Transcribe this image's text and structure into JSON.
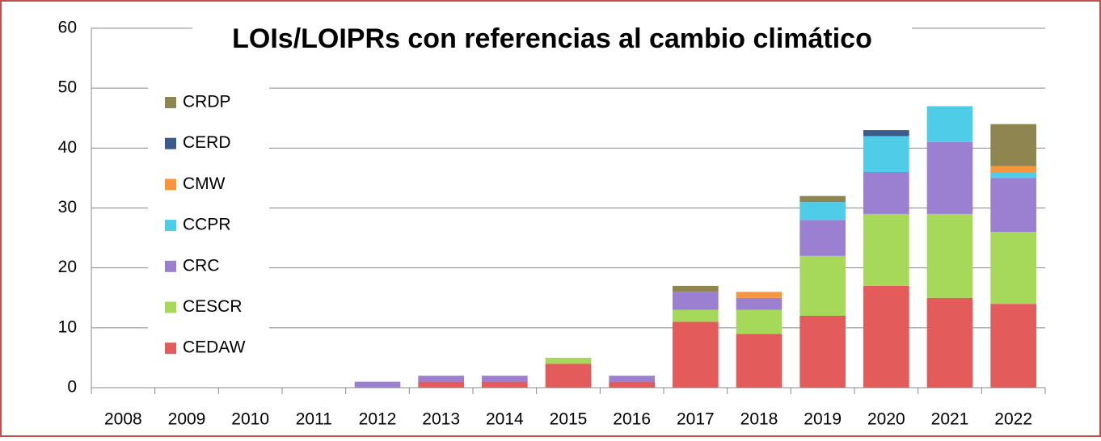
{
  "chart_data": {
    "type": "stacked_bar",
    "title": "LOIs/LOIPRs con referencias al cambio climático",
    "categories": [
      "2008",
      "2009",
      "2010",
      "2011",
      "2012",
      "2013",
      "2014",
      "2015",
      "2016",
      "2017",
      "2018",
      "2019",
      "2020",
      "2021",
      "2022"
    ],
    "series": [
      {
        "name": "CEDAW",
        "color": "#e35b5b",
        "values": [
          0,
          0,
          0,
          0,
          0,
          1,
          1,
          4,
          1,
          11,
          9,
          12,
          17,
          15,
          14
        ]
      },
      {
        "name": "CESCR",
        "color": "#a6d95a",
        "values": [
          0,
          0,
          0,
          0,
          0,
          0,
          0,
          1,
          0,
          2,
          4,
          10,
          12,
          14,
          12
        ]
      },
      {
        "name": "CRC",
        "color": "#9b7fd0",
        "values": [
          0,
          0,
          0,
          0,
          1,
          1,
          1,
          0,
          1,
          3,
          2,
          6,
          7,
          12,
          9
        ]
      },
      {
        "name": "CCPR",
        "color": "#4fcde8",
        "values": [
          0,
          0,
          0,
          0,
          0,
          0,
          0,
          0,
          0,
          0,
          0,
          3,
          6,
          6,
          1
        ]
      },
      {
        "name": "CMW",
        "color": "#f7963c",
        "values": [
          0,
          0,
          0,
          0,
          0,
          0,
          0,
          0,
          0,
          0,
          1,
          0,
          0,
          0,
          1
        ]
      },
      {
        "name": "CERD",
        "color": "#3d5a8c",
        "values": [
          0,
          0,
          0,
          0,
          0,
          0,
          0,
          0,
          0,
          0,
          0,
          0,
          1,
          0,
          0
        ]
      },
      {
        "name": "CRDP",
        "color": "#8f8550",
        "values": [
          0,
          0,
          0,
          0,
          0,
          0,
          0,
          0,
          0,
          1,
          0,
          1,
          0,
          0,
          7
        ]
      }
    ],
    "ylim": [
      0,
      60
    ],
    "yticks": [
      0,
      10,
      20,
      30,
      40,
      50,
      60
    ],
    "grid": true,
    "legend": "left"
  }
}
